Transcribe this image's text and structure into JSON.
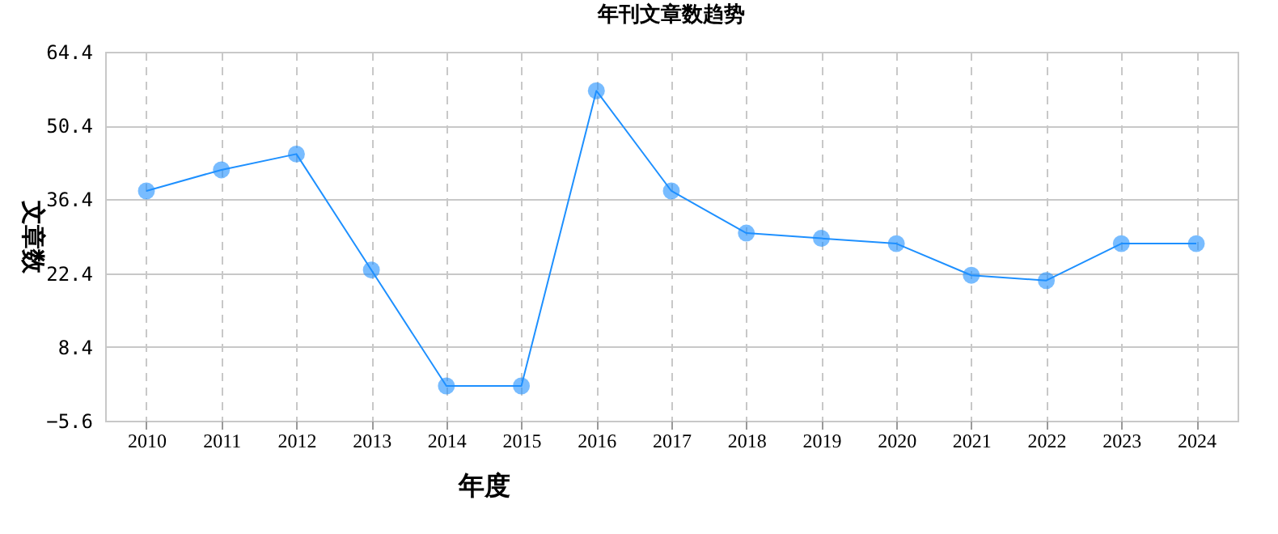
{
  "chart_data": {
    "type": "line",
    "title": "年刊文章数趋势",
    "xlabel": "年度",
    "ylabel": "文章数",
    "categories": [
      "2010",
      "2011",
      "2012",
      "2013",
      "2014",
      "2015",
      "2016",
      "2017",
      "2018",
      "2019",
      "2020",
      "2021",
      "2022",
      "2023",
      "2024"
    ],
    "series": [
      {
        "color": "#1e90ff",
        "values": [
          38,
          42,
          45,
          23,
          1,
          1,
          57,
          38,
          30,
          29,
          28,
          22,
          21,
          28,
          28
        ]
      }
    ],
    "ylim": [
      -5.6,
      64.4
    ],
    "yticks": [
      -5.6,
      8.4,
      22.4,
      36.4,
      50.4,
      64.4
    ],
    "grid": true,
    "marker": "circle",
    "line_style": "solid"
  }
}
